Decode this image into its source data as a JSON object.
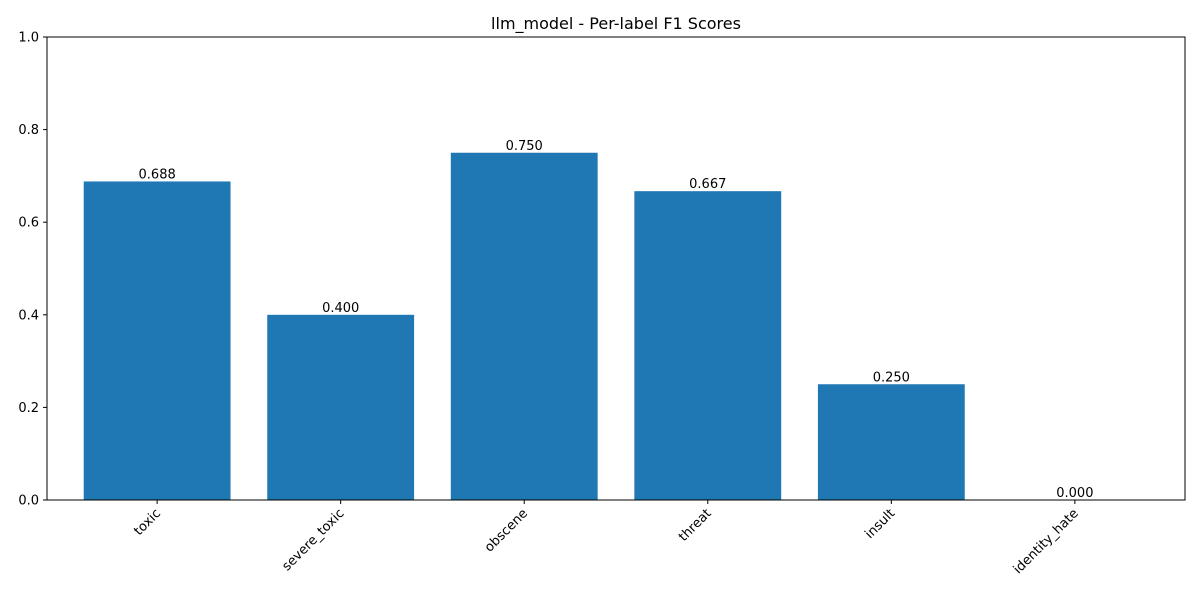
{
  "chart_data": {
    "type": "bar",
    "title": "llm_model - Per-label F1 Scores",
    "xlabel": "",
    "ylabel": "",
    "categories": [
      "toxic",
      "severe_toxic",
      "obscene",
      "threat",
      "insult",
      "identity_hate"
    ],
    "values": [
      0.688,
      0.4,
      0.75,
      0.667,
      0.25,
      0.0
    ],
    "value_labels": [
      "0.688",
      "0.400",
      "0.750",
      "0.667",
      "0.250",
      "0.000"
    ],
    "ylim": [
      0,
      1.0
    ],
    "yticks": [
      0.0,
      0.2,
      0.4,
      0.6,
      0.8,
      1.0
    ],
    "ytick_labels": [
      "0.0",
      "0.2",
      "0.4",
      "0.6",
      "0.8",
      "1.0"
    ],
    "xtick_rotation_deg": 45,
    "grid": false,
    "legend": "none",
    "bar_color": "#1f77b4"
  }
}
